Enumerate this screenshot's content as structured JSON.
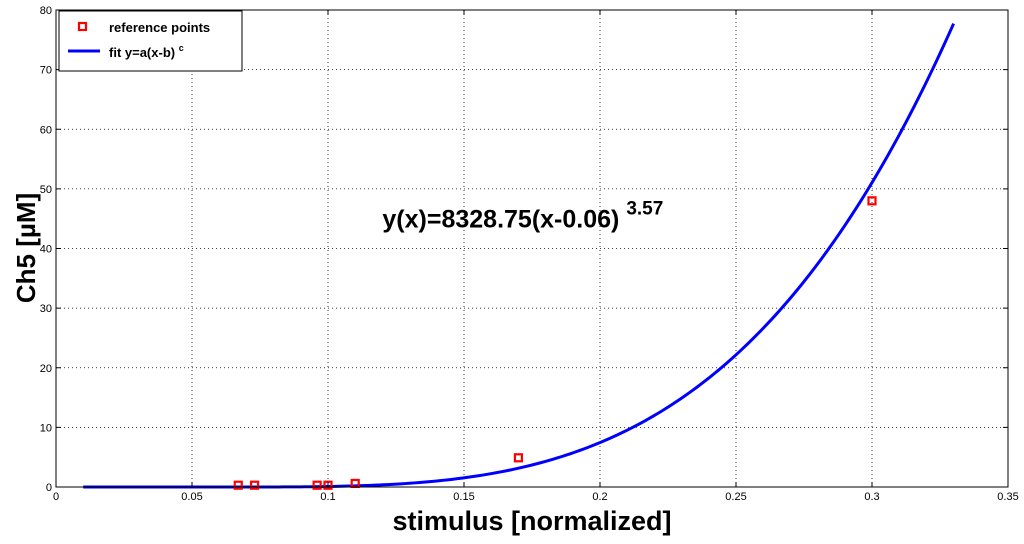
{
  "chart_data": {
    "type": "scatter",
    "title": "",
    "xlabel": "stimulus [normalized]",
    "ylabel": "Ch5 [µM]",
    "xlim": [
      0,
      0.35
    ],
    "ylim": [
      0,
      80
    ],
    "x_ticks": [
      0,
      0.05,
      0.1,
      0.15,
      0.2,
      0.25,
      0.3,
      0.35
    ],
    "x_tick_labels": [
      "0",
      "0.05",
      "0.1",
      "0.15",
      "0.2",
      "0.25",
      "0.3",
      "0.35"
    ],
    "y_ticks": [
      0,
      10,
      20,
      30,
      40,
      50,
      60,
      70,
      80
    ],
    "y_tick_labels": [
      "0",
      "10",
      "20",
      "30",
      "40",
      "50",
      "60",
      "70",
      "80"
    ],
    "grid": true,
    "legend_position": "top-left",
    "series": [
      {
        "name": "reference points",
        "kind": "markers",
        "color": "#ff0000",
        "points": [
          {
            "x": 0.067,
            "y": 0.3
          },
          {
            "x": 0.073,
            "y": 0.3
          },
          {
            "x": 0.096,
            "y": 0.3
          },
          {
            "x": 0.1,
            "y": 0.3
          },
          {
            "x": 0.11,
            "y": 0.6
          },
          {
            "x": 0.17,
            "y": 4.9
          },
          {
            "x": 0.3,
            "y": 48.0
          }
        ]
      },
      {
        "name": "fit y=a(x-b)",
        "name_superscript": "c",
        "kind": "line",
        "color": "#0000ff",
        "fit": {
          "a": 8328.75,
          "b": 0.06,
          "c": 3.57,
          "x_min": 0.01,
          "x_max": 0.33
        }
      }
    ],
    "annotation": {
      "text": "y(x)=8328.75(x-0.06)",
      "superscript": "3.57",
      "x": 0.12,
      "y": 43.5
    }
  }
}
